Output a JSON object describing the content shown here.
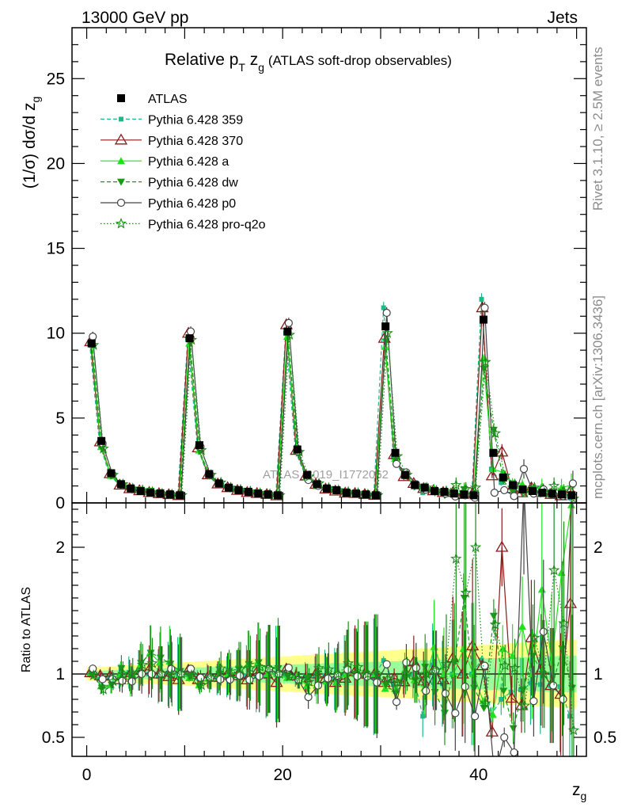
{
  "header": {
    "energy": "13000 GeV pp",
    "category": "Jets"
  },
  "side_labels": {
    "rivet": "Rivet 3.1.10, ≥ 2.5M events",
    "source": "mcplots.cern.ch [arXiv:1306.3436]"
  },
  "watermark": "ATLAS_2019_I1772062",
  "chart_data": [
    {
      "type": "line",
      "title": "Relative p_T z_g (ATLAS soft-drop observables)",
      "title_parts": {
        "pre": "Relative p",
        "sub_T": "T",
        "mid": " z",
        "sub_g": "g",
        "post": " (ATLAS soft-drop observables)"
      },
      "ylabel": "(1/σ) dσ/d z_g",
      "xlabel": "z_g",
      "xlim": [
        -1.5,
        51
      ],
      "ylim": [
        0,
        28
      ],
      "yticks": [
        0,
        5,
        10,
        15,
        20,
        25
      ],
      "xticks": [
        0,
        20,
        40
      ],
      "legend_position": "top-left",
      "colors": {
        "ATLAS": "#000000",
        "p359": "#1fb88a",
        "p370": "#8b1a1a",
        "pa": "#22e01e",
        "pdw": "#199a19",
        "pp0": "#444444",
        "pq2o": "#1b8a1b"
      },
      "legend": [
        {
          "key": "ATLAS",
          "label": "ATLAS"
        },
        {
          "key": "p359",
          "label": "Pythia 6.428 359"
        },
        {
          "key": "p370",
          "label": "Pythia 6.428 370"
        },
        {
          "key": "pa",
          "label": "Pythia 6.428 a"
        },
        {
          "key": "pdw",
          "label": "Pythia 6.428 dw"
        },
        {
          "key": "pp0",
          "label": "Pythia 6.428 p0"
        },
        {
          "key": "pq2o",
          "label": "Pythia 6.428 pro-q2o"
        }
      ],
      "x": [
        0.5,
        1.5,
        2.5,
        3.5,
        4.5,
        5.5,
        6.5,
        7.5,
        8.5,
        9.5,
        10.5,
        11.5,
        12.5,
        13.5,
        14.5,
        15.5,
        16.5,
        17.5,
        18.5,
        19.5,
        20.5,
        21.5,
        22.5,
        23.5,
        24.5,
        25.5,
        26.5,
        27.5,
        28.5,
        29.5,
        30.5,
        31.5,
        32.5,
        33.5,
        34.5,
        35.5,
        36.5,
        37.5,
        38.5,
        39.5,
        40.5,
        41.5,
        42.5,
        43.5,
        44.5,
        45.5,
        46.5,
        47.5,
        48.5,
        49.5
      ],
      "atlas": [
        9.4,
        3.65,
        1.75,
        1.1,
        0.85,
        0.7,
        0.6,
        0.55,
        0.5,
        0.45,
        9.7,
        3.4,
        1.7,
        1.15,
        0.9,
        0.75,
        0.65,
        0.55,
        0.5,
        0.45,
        10.1,
        3.15,
        1.65,
        1.1,
        0.85,
        0.75,
        0.6,
        0.55,
        0.5,
        0.45,
        10.4,
        2.95,
        1.65,
        1.05,
        0.9,
        0.7,
        0.65,
        0.55,
        0.5,
        0.45,
        10.8,
        2.95,
        1.5,
        1.05,
        0.8,
        0.7,
        0.6,
        0.55,
        0.5,
        0.45
      ],
      "series": [
        {
          "key": "p359",
          "label": "Pythia 6.428 359",
          "values": [
            9.4,
            3.5,
            1.7,
            1.08,
            0.86,
            0.72,
            0.6,
            0.54,
            0.5,
            0.45,
            9.65,
            3.3,
            1.68,
            1.1,
            0.88,
            0.74,
            0.64,
            0.54,
            0.49,
            0.45,
            10.0,
            3.05,
            1.62,
            1.08,
            0.84,
            0.72,
            0.6,
            0.55,
            0.49,
            0.44,
            11.5,
            2.7,
            1.6,
            1.05,
            0.6,
            0.75,
            0.6,
            0.55,
            0.5,
            0.45,
            12.0,
            2.0,
            1.2,
            0.9,
            0.7,
            0.65,
            0.55,
            0.5,
            0.45,
            0.3
          ]
        },
        {
          "key": "p370",
          "label": "Pythia 6.428 370",
          "values": [
            9.5,
            3.6,
            1.72,
            1.05,
            0.84,
            0.72,
            0.62,
            0.55,
            0.49,
            0.43,
            10.0,
            3.25,
            1.66,
            1.12,
            0.9,
            0.74,
            0.62,
            0.56,
            0.5,
            0.42,
            10.5,
            3.1,
            1.6,
            1.1,
            0.82,
            0.7,
            0.58,
            0.56,
            0.5,
            0.45,
            9.7,
            2.85,
            1.55,
            1.15,
            0.85,
            0.72,
            0.62,
            0.62,
            0.5,
            0.55,
            11.5,
            1.6,
            3.0,
            0.85,
            0.6,
            0.9,
            0.62,
            0.5,
            0.42,
            0.7
          ]
        },
        {
          "key": "pa",
          "label": "Pythia 6.428 a",
          "values": [
            9.5,
            3.3,
            1.6,
            1.1,
            0.8,
            0.75,
            0.7,
            0.6,
            0.55,
            0.45,
            9.4,
            3.1,
            1.65,
            1.12,
            0.9,
            0.75,
            0.7,
            0.6,
            0.5,
            0.45,
            9.8,
            3.1,
            1.5,
            1.0,
            0.8,
            0.7,
            0.6,
            0.55,
            0.5,
            0.45,
            9.2,
            2.6,
            1.7,
            1.0,
            0.8,
            0.85,
            0.65,
            0.55,
            0.6,
            0.45,
            8.5,
            2.0,
            1.8,
            1.2,
            1.1,
            0.7,
            1.0,
            0.6,
            0.9,
            1.05
          ]
        },
        {
          "key": "pdw",
          "label": "Pythia 6.428 dw",
          "values": [
            9.4,
            3.25,
            1.6,
            1.15,
            0.82,
            0.76,
            0.7,
            0.62,
            0.54,
            0.46,
            9.5,
            3.05,
            1.6,
            1.15,
            0.92,
            0.78,
            0.7,
            0.6,
            0.52,
            0.47,
            9.9,
            3.0,
            1.6,
            1.1,
            0.8,
            0.72,
            0.62,
            0.55,
            0.5,
            0.45,
            9.5,
            2.5,
            1.6,
            1.0,
            0.95,
            0.6,
            0.45,
            0.6,
            0.8,
            0.4,
            7.9,
            4.3,
            1.3,
            0.6,
            0.7,
            0.8,
            0.6,
            0.5,
            0.6,
            0.4
          ]
        },
        {
          "key": "pp0",
          "label": "Pythia 6.428 p0",
          "values": [
            9.8,
            3.5,
            1.68,
            1.04,
            0.8,
            0.7,
            0.6,
            0.55,
            0.52,
            0.45,
            10.1,
            3.3,
            1.65,
            1.1,
            0.86,
            0.74,
            0.62,
            0.54,
            0.52,
            0.45,
            10.6,
            3.0,
            1.35,
            1.0,
            0.82,
            0.74,
            0.62,
            0.54,
            0.49,
            0.42,
            11.2,
            2.3,
            1.8,
            1.1,
            0.78,
            0.72,
            0.55,
            0.38,
            0.45,
            0.3,
            11.5,
            0.6,
            0.75,
            0.4,
            2.0,
            0.55,
            0.8,
            0.5,
            0.4,
            1.15
          ]
        },
        {
          "key": "pq2o",
          "label": "Pythia 6.428 pro-q2o",
          "values": [
            9.3,
            3.2,
            1.65,
            1.1,
            0.85,
            0.75,
            0.65,
            0.55,
            0.5,
            0.45,
            9.6,
            3.1,
            1.65,
            1.2,
            0.9,
            0.78,
            0.68,
            0.58,
            0.52,
            0.45,
            9.9,
            3.0,
            1.55,
            1.15,
            0.88,
            0.75,
            0.65,
            0.58,
            0.5,
            0.45,
            10.0,
            2.75,
            1.65,
            1.0,
            0.9,
            0.72,
            0.7,
            1.05,
            0.82,
            0.9,
            8.3,
            4.1,
            1.6,
            1.1,
            0.6,
            0.9,
            0.6,
            1.0,
            0.7,
            0.25
          ]
        }
      ]
    },
    {
      "type": "line",
      "ylabel": "Ratio to ATLAS",
      "xlabel": "z_g",
      "ylim": [
        0.35,
        2.35
      ],
      "yticks": [
        0.5,
        1,
        2
      ],
      "yticklabels": [
        "0.5",
        "1",
        "2"
      ],
      "reference_line": 1,
      "uncertainty_bands": "yellow (outer) and green (inner) around 1"
    }
  ]
}
